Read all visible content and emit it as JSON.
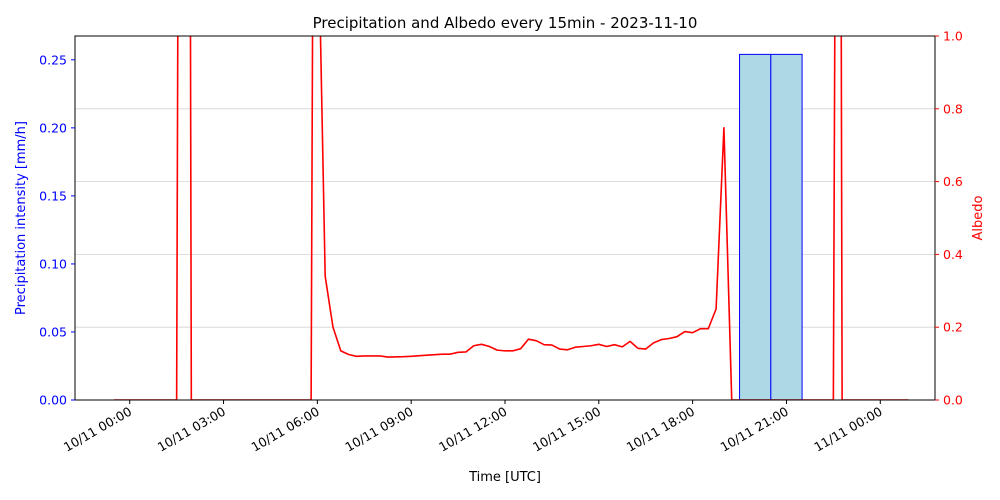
{
  "chart_data": {
    "type": "bar",
    "title": "Precipitation and Albedo every 15min - 2023-11-10",
    "xlabel": "Time [UTC]",
    "ylabel_left": "Precipitation intensity [mm/h]",
    "ylabel_right": "Albedo",
    "x_tick_labels": [
      "10/11 00:00",
      "10/11 03:00",
      "10/11 06:00",
      "10/11 09:00",
      "10/11 12:00",
      "10/11 15:00",
      "10/11 18:00",
      "10/11 21:00",
      "11/11 00:00"
    ],
    "x_tick_hours": [
      0,
      3,
      6,
      9,
      12,
      15,
      18,
      21,
      24
    ],
    "xlim_hours": [
      -1.75,
      25.75
    ],
    "ylim_left": [
      0,
      0.2675
    ],
    "yticks_left": [
      "0.00",
      "0.05",
      "0.10",
      "0.15",
      "0.20",
      "0.25"
    ],
    "ylim_right": [
      0,
      1.0
    ],
    "yticks_right": [
      "0.0",
      "0.2",
      "0.4",
      "0.6",
      "0.8",
      "1.0"
    ],
    "grid": "horizontal",
    "colors": {
      "precip_fill": "#add8e6",
      "precip_edge": "#0000ff",
      "albedo_line": "#ff0000",
      "left_axis": "#0000ff",
      "right_axis": "#ff0000",
      "grid": "#d3d3d3"
    },
    "precipitation": {
      "name": "Precipitation intensity",
      "bar_width_hours": 1.0,
      "bars": [
        {
          "start_hour": 19.5,
          "value": 0.254
        },
        {
          "start_hour": 20.5,
          "value": 0.254
        }
      ]
    },
    "albedo": {
      "name": "Albedo",
      "points": [
        [
          -0.5,
          0
        ],
        [
          1.5,
          0
        ],
        [
          1.54,
          1.1
        ],
        [
          1.94,
          1.1
        ],
        [
          1.97,
          0
        ],
        [
          5.8,
          0
        ],
        [
          5.85,
          1.1
        ],
        [
          6.1,
          1.0
        ],
        [
          6.25,
          0.34
        ],
        [
          6.5,
          0.2
        ],
        [
          6.75,
          0.135
        ],
        [
          7.0,
          0.125
        ],
        [
          7.25,
          0.12
        ],
        [
          7.5,
          0.121
        ],
        [
          8.0,
          0.121
        ],
        [
          8.25,
          0.118
        ],
        [
          8.75,
          0.119
        ],
        [
          9.0,
          0.12
        ],
        [
          9.5,
          0.123
        ],
        [
          10.0,
          0.126
        ],
        [
          10.25,
          0.126
        ],
        [
          10.5,
          0.131
        ],
        [
          10.75,
          0.132
        ],
        [
          11.0,
          0.149
        ],
        [
          11.25,
          0.153
        ],
        [
          11.5,
          0.147
        ],
        [
          11.75,
          0.137
        ],
        [
          12.0,
          0.135
        ],
        [
          12.25,
          0.135
        ],
        [
          12.5,
          0.141
        ],
        [
          12.75,
          0.167
        ],
        [
          13.0,
          0.163
        ],
        [
          13.25,
          0.152
        ],
        [
          13.5,
          0.151
        ],
        [
          13.75,
          0.14
        ],
        [
          14.0,
          0.138
        ],
        [
          14.25,
          0.145
        ],
        [
          14.5,
          0.147
        ],
        [
          14.75,
          0.149
        ],
        [
          15.0,
          0.153
        ],
        [
          15.25,
          0.147
        ],
        [
          15.5,
          0.152
        ],
        [
          15.75,
          0.146
        ],
        [
          16.0,
          0.161
        ],
        [
          16.25,
          0.142
        ],
        [
          16.5,
          0.14
        ],
        [
          16.75,
          0.157
        ],
        [
          17.0,
          0.166
        ],
        [
          17.25,
          0.169
        ],
        [
          17.5,
          0.174
        ],
        [
          17.75,
          0.188
        ],
        [
          18.0,
          0.185
        ],
        [
          18.25,
          0.196
        ],
        [
          18.5,
          0.196
        ],
        [
          18.75,
          0.25
        ],
        [
          19.0,
          0.748
        ],
        [
          19.25,
          0
        ],
        [
          22.5,
          0
        ],
        [
          22.55,
          1.1
        ],
        [
          22.75,
          1.1
        ],
        [
          22.78,
          0
        ],
        [
          24.9,
          0
        ]
      ]
    }
  }
}
